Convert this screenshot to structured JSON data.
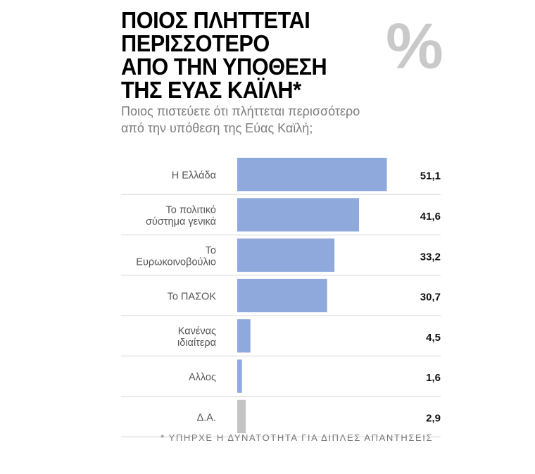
{
  "title_lines": [
    "ΠΟΙΟΣ ΠΛΗΤΤΕΤΑΙ",
    "ΠΕΡΙΣΣΟΤΕΡΟ",
    "ΑΠΟ ΤΗΝ ΥΠΟΘΕΣΗ",
    "ΤΗΣ ΕΥΑΣ ΚΑΪΛΗ*"
  ],
  "percent_symbol": "%",
  "subtitle_lines": [
    "Ποιος πιστεύετε ότι πλήττεται περισσότερο",
    "από την υπόθεση της Εύας Καϊλή;"
  ],
  "footnote": "* ΥΠΗΡΧΕ Η ΔΥΝΑΤΟΤΗΤΑ ΓΙΑ ΔΙΠΛΕΣ ΑΠΑΝΤΗΣΕΙΣ",
  "colors": {
    "bar": "#8fa9dc",
    "bar_na": "#c4c4c4",
    "divider": "#d6d6d6"
  },
  "chart_data": {
    "type": "bar",
    "orientation": "horizontal",
    "categories": [
      [
        "Η Ελλάδα"
      ],
      [
        "Το πολιτικό",
        "σύστημα γενικά"
      ],
      [
        "Το",
        "Ευρωκοινοβούλιο"
      ],
      [
        "Το ΠΑΣΟΚ"
      ],
      [
        "Κανένας",
        "ιδιαίτερα"
      ],
      [
        "Αλλος"
      ],
      [
        "Δ.Α."
      ]
    ],
    "values": [
      51.1,
      41.6,
      33.2,
      30.7,
      4.5,
      1.6,
      2.9
    ],
    "value_labels": [
      "51,1",
      "41,6",
      "33,2",
      "30,7",
      "4,5",
      "1,6",
      "2,9"
    ],
    "highlight_gray": [
      "Δ.Α."
    ],
    "xlim": [
      0,
      100
    ],
    "grid": false
  }
}
